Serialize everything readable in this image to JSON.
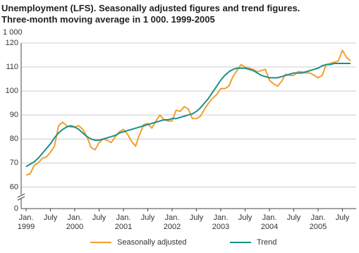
{
  "chart_data": {
    "type": "line",
    "title": "Unemployment (LFS). Seasonally adjusted figures and trend figures.",
    "subtitle": "Three-month moving average in 1 000. 1999-2005",
    "y_label": "1 000",
    "categories": [
      "Jan.\n1999",
      null,
      null,
      null,
      null,
      null,
      "July",
      null,
      null,
      null,
      null,
      null,
      "Jan.\n2000",
      null,
      null,
      null,
      null,
      null,
      "July",
      null,
      null,
      null,
      null,
      null,
      "Jan.\n2001",
      null,
      null,
      null,
      null,
      null,
      "July",
      null,
      null,
      null,
      null,
      null,
      "Jan.\n2002",
      null,
      null,
      null,
      null,
      null,
      "July",
      null,
      null,
      null,
      null,
      null,
      "Jan.\n2003",
      null,
      null,
      null,
      null,
      null,
      "July",
      null,
      null,
      null,
      null,
      null,
      "Jan.\n2004",
      null,
      null,
      null,
      null,
      null,
      "July",
      null,
      null,
      null,
      null,
      null,
      "Jan.\n2005",
      null,
      null,
      null,
      null,
      null,
      "July",
      null,
      null
    ],
    "series": [
      {
        "name": "Seasonally adjusted",
        "color": "#f0a030",
        "values": [
          65,
          65.5,
          69,
          70,
          72,
          72.5,
          74.5,
          77,
          85.5,
          87,
          85.5,
          85,
          85,
          85.5,
          84,
          81,
          76.5,
          75.5,
          78.5,
          80,
          79.5,
          78.5,
          81,
          83,
          84,
          82,
          79,
          77,
          82,
          86,
          86.5,
          84.5,
          87.5,
          90,
          88,
          87.5,
          87.5,
          92,
          91.5,
          93.5,
          92.5,
          88.5,
          88.5,
          89.5,
          92.5,
          95,
          97,
          98.5,
          101,
          101,
          102,
          106,
          108.5,
          111,
          110,
          109.5,
          109,
          108,
          108.5,
          109,
          104.5,
          103,
          102,
          104,
          107,
          106.5,
          106.5,
          108,
          108,
          107.5,
          107.5,
          106.5,
          105.5,
          106.5,
          111,
          111.5,
          112,
          112.5,
          117,
          114,
          112.5
        ]
      },
      {
        "name": "Trend",
        "color": "#1a8f8a",
        "values": [
          68.5,
          69.5,
          70.5,
          72,
          74,
          76,
          78,
          80.5,
          82.5,
          84,
          85,
          85.5,
          85,
          84,
          82.5,
          81,
          80,
          79.5,
          79.5,
          80,
          80.5,
          81,
          81.5,
          82.5,
          83,
          83.5,
          84,
          84.5,
          85,
          85.5,
          86,
          86.5,
          87,
          87.5,
          88,
          88,
          88.5,
          88.5,
          89,
          89.5,
          90,
          90.5,
          91.5,
          93,
          95,
          97,
          99.5,
          102,
          104.5,
          106.5,
          108,
          109,
          109.5,
          109.5,
          109.5,
          109,
          108.5,
          107.5,
          106.5,
          106,
          105.5,
          105.5,
          105.5,
          106,
          106.5,
          107,
          107.5,
          107.5,
          107.5,
          108,
          108.5,
          109,
          109.5,
          110.5,
          111,
          111,
          111.5,
          111.5,
          111.5,
          111.5,
          111.5
        ]
      }
    ],
    "ylim": [
      51,
      120
    ],
    "yticks": [
      0,
      60,
      70,
      80,
      90,
      100,
      110,
      120
    ],
    "axis_break": true,
    "grid": true
  }
}
